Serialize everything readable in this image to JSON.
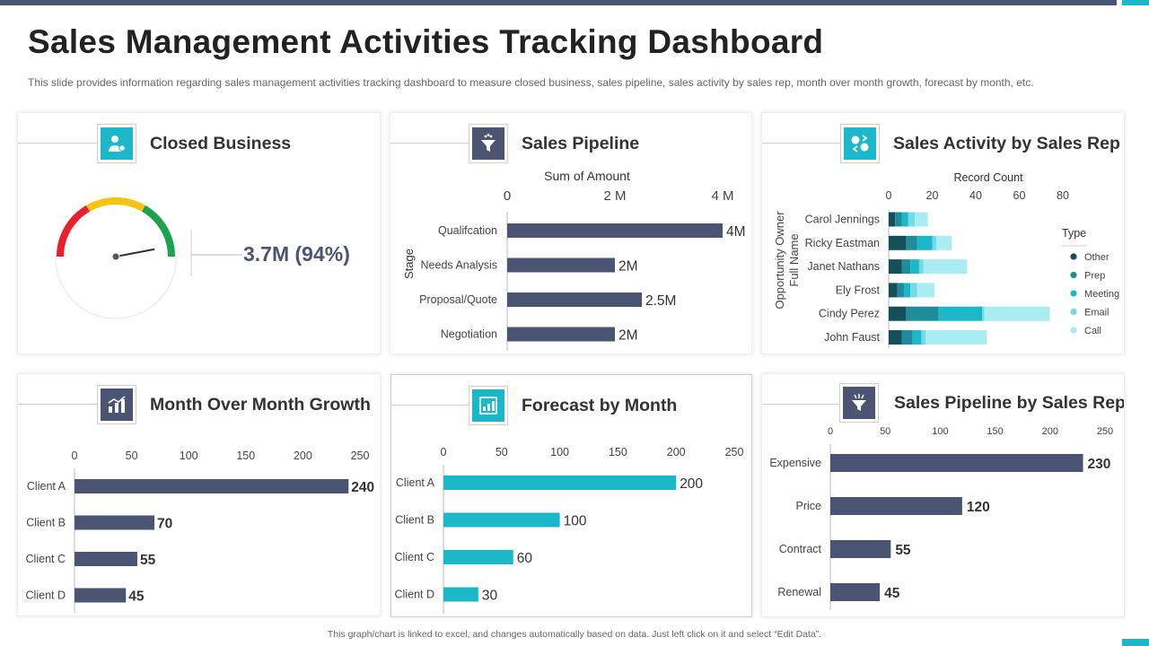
{
  "title": "Sales Management Activities Tracking Dashboard",
  "subtitle": "This slide provides information regarding sales management activities tracking dashboard to measure closed business, sales pipeline, sales activity by sales rep, month over month growth, forecast by month, etc.",
  "footer": "This graph/chart is linked to excel, and changes automatically based on data. Just left click on it and select “Edit Data”.",
  "colors": {
    "dark": "#4b5472",
    "teal": "#1cb8c9",
    "accent_bar": "#4b5472"
  },
  "panels": {
    "closed_business": {
      "title": "Closed Business",
      "icon": "handshake-user-icon",
      "kpi": "3.7M (94%)"
    },
    "sales_pipeline": {
      "title": "Sales Pipeline",
      "icon": "funnel-icon"
    },
    "sales_activity": {
      "title": "Sales Activity by Sales Rep",
      "icon": "money-exchange-icon"
    },
    "mom_growth": {
      "title": "Month Over Month Growth",
      "icon": "bar-chart-icon"
    },
    "forecast": {
      "title": "Forecast by Month",
      "icon": "forecast-chart-icon"
    },
    "pipeline_by_rep": {
      "title": "Sales Pipeline by Sales Rep",
      "icon": "funnel-icon"
    }
  },
  "chart_data": [
    {
      "id": "closed_business",
      "type": "gauge",
      "value": 94,
      "max": 100,
      "segments": [
        {
          "name": "low",
          "color": "#e8202a"
        },
        {
          "name": "mid",
          "color": "#f5c314"
        },
        {
          "name": "high",
          "color": "#1aa34a"
        }
      ],
      "label": "3.7M (94%)"
    },
    {
      "id": "sales_pipeline",
      "type": "bar",
      "orientation": "horizontal",
      "title": "Sum of Amount",
      "ylabel": "Stage",
      "categories": [
        "Qualifcation",
        "Needs Analysis",
        "Proposal/Quote",
        "Negotiation"
      ],
      "values": [
        4,
        2,
        2.5,
        2
      ],
      "data_labels": [
        "4M",
        "2M",
        "2.5M",
        "2M"
      ],
      "ticks": [
        "0",
        "2 M",
        "4 M"
      ],
      "tick_values": [
        0,
        2,
        4
      ],
      "xlim": [
        0,
        4
      ],
      "color": "#4b5472"
    },
    {
      "id": "sales_activity",
      "type": "bar",
      "orientation": "horizontal",
      "stacked": true,
      "title": "Record Count",
      "ylabel": "Opportunity Owner Full Name",
      "categories": [
        "Carol Jennings",
        "Ricky Eastman",
        "Janet Nathans",
        "Ely Frost",
        "Cindy Perez",
        "John Faust"
      ],
      "series": [
        {
          "name": "Other",
          "color": "#144f5a",
          "values": [
            3,
            8,
            6,
            4,
            8,
            6
          ]
        },
        {
          "name": "Prep",
          "color": "#1f8c9c",
          "values": [
            3,
            5,
            4,
            3,
            15,
            5
          ]
        },
        {
          "name": "Meeting",
          "color": "#1cb8c9",
          "values": [
            3,
            7,
            4,
            3,
            20,
            4
          ]
        },
        {
          "name": "Email",
          "color": "#73dbe6",
          "values": [
            3,
            2,
            2,
            3,
            1,
            2
          ]
        },
        {
          "name": "Call",
          "color": "#a9ecf2",
          "values": [
            6,
            7,
            20,
            8,
            30,
            28
          ]
        }
      ],
      "ticks": [
        "0",
        "20",
        "40",
        "60",
        "80"
      ],
      "tick_values": [
        0,
        20,
        40,
        60,
        80
      ],
      "xlim": [
        0,
        80
      ],
      "legend_title": "Type"
    },
    {
      "id": "mom_growth",
      "type": "bar",
      "orientation": "horizontal",
      "categories": [
        "Client A",
        "Client B",
        "Client C",
        "Client D"
      ],
      "values": [
        240,
        70,
        55,
        45
      ],
      "data_labels": [
        "240",
        "70",
        "55",
        "45"
      ],
      "ticks": [
        "0",
        "50",
        "100",
        "150",
        "200",
        "250"
      ],
      "tick_values": [
        0,
        50,
        100,
        150,
        200,
        250
      ],
      "xlim": [
        0,
        250
      ],
      "color": "#4b5472"
    },
    {
      "id": "forecast",
      "type": "bar",
      "orientation": "horizontal",
      "categories": [
        "Client A",
        "Client B",
        "Client C",
        "Client D"
      ],
      "values": [
        200,
        100,
        60,
        30
      ],
      "data_labels": [
        "200",
        "100",
        "60",
        "30"
      ],
      "ticks": [
        "0",
        "50",
        "100",
        "150",
        "200",
        "250"
      ],
      "tick_values": [
        0,
        50,
        100,
        150,
        200,
        250
      ],
      "xlim": [
        0,
        250
      ],
      "color": "#1cb8c9"
    },
    {
      "id": "pipeline_by_rep",
      "type": "bar",
      "orientation": "horizontal",
      "categories": [
        "Expensive",
        "Price",
        "Contract",
        "Renewal"
      ],
      "values": [
        230,
        120,
        55,
        45
      ],
      "data_labels": [
        "230",
        "120",
        "55",
        "45"
      ],
      "ticks": [
        "0",
        "50",
        "100",
        "150",
        "200",
        "250"
      ],
      "tick_values": [
        0,
        50,
        100,
        150,
        200,
        250
      ],
      "xlim": [
        0,
        250
      ],
      "color": "#4b5472"
    }
  ]
}
